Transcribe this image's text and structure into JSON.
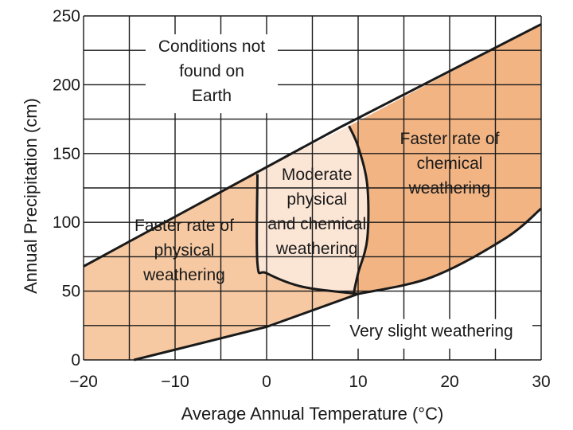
{
  "chart_data": {
    "type": "area",
    "title": "",
    "xlabel": "Average Annual Temperature (°C)",
    "ylabel": "Annual Precipitation (cm)",
    "xlim": [
      -20,
      30
    ],
    "ylim": [
      0,
      250
    ],
    "x_ticks": [
      -20,
      -10,
      0,
      10,
      20,
      30
    ],
    "x_tick_labels": [
      "−20",
      "−10",
      "0",
      "10",
      "20",
      "30"
    ],
    "y_ticks": [
      0,
      50,
      100,
      150,
      200,
      250
    ],
    "y_tick_labels": [
      "0",
      "50",
      "100",
      "150",
      "200",
      "250"
    ],
    "grid_step_x": 5,
    "grid_step_y": 25,
    "grid": true,
    "boundaries": {
      "upper_limit": [
        [
          -20,
          68
        ],
        [
          8,
          169
        ],
        [
          30,
          244
        ]
      ],
      "lower_limit": [
        [
          -14.5,
          0
        ],
        [
          0,
          24
        ],
        [
          10,
          48
        ],
        [
          18,
          60
        ],
        [
          26,
          88
        ],
        [
          30,
          110
        ]
      ],
      "physical_moderate_divide": [
        [
          -1,
          135
        ],
        [
          -1,
          70
        ],
        [
          0,
          63
        ],
        [
          4,
          53
        ],
        [
          10,
          48
        ]
      ],
      "moderate_chemical_divide": [
        [
          9,
          170
        ],
        [
          10,
          155
        ],
        [
          11,
          127
        ],
        [
          11,
          88
        ],
        [
          10,
          63
        ],
        [
          9.5,
          48
        ]
      ]
    },
    "regions": [
      {
        "name": "Faster rate of physical weathering",
        "lines": [
          "Faster rate of",
          "physical",
          "weathering"
        ],
        "color": "#f6c9a3",
        "label_at": [
          -9,
          80
        ]
      },
      {
        "name": "Moderate physical and chemical weathering",
        "lines": [
          "Moderate",
          "physical",
          "and chemical",
          "weathering"
        ],
        "color": "#fbe5d5",
        "label_at": [
          5.5,
          108
        ]
      },
      {
        "name": "Faster rate of chemical weathering",
        "lines": [
          "Faster rate of",
          "chemical",
          "weathering"
        ],
        "color": "#f2b483",
        "label_at": [
          20,
          143
        ]
      },
      {
        "name": "Conditions not found on Earth",
        "lines": [
          "Conditions not",
          "found on",
          "Earth"
        ],
        "color": "#ffffff",
        "label_at": [
          -6,
          210
        ]
      },
      {
        "name": "Very slight weathering",
        "lines": [
          "Very slight weathering"
        ],
        "color": "#ffffff",
        "label_at": [
          18,
          21
        ]
      }
    ]
  }
}
